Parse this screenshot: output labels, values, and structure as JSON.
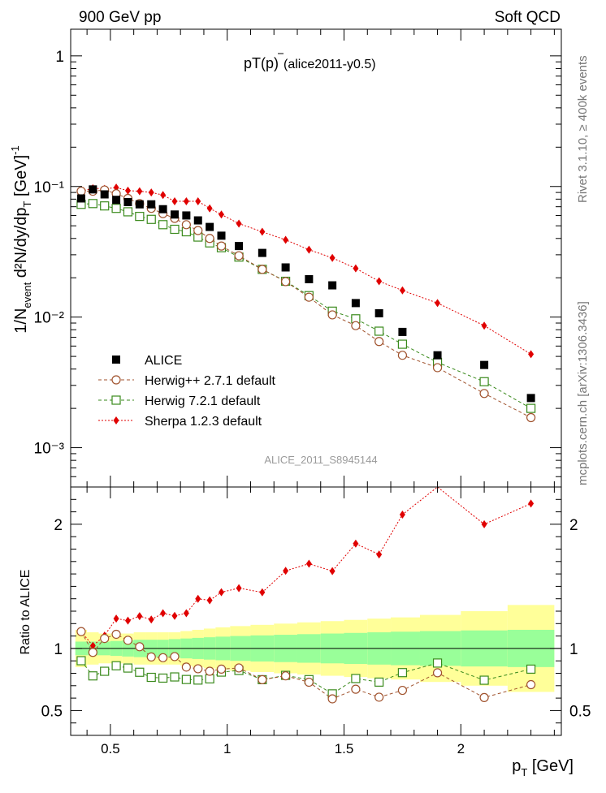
{
  "header": {
    "left": "900 GeV pp",
    "right": "Soft QCD"
  },
  "side": {
    "rivet": "Rivet 3.1.10, ≥ 400k events",
    "mcplots": "mcplots.cern.ch [arXiv:1306.3436]"
  },
  "plot": {
    "title_prefix": "pT",
    "title_particle": "(p)",
    "title_suffix": "(alice2011-y0.5)",
    "analysis_label": "ALICE_2011_S8945144",
    "ylabel_main": "1/N",
    "ylabel_sub": "event",
    "ylabel_rest": " d²N/dy/dp",
    "ylabel_subT": "T",
    "ylabel_unit": " [GeV]",
    "ylabel_exp": "-1",
    "ratio_ylabel": "Ratio to ALICE",
    "xlabel_main": "p",
    "xlabel_sub": "T",
    "xlabel_unit": " [GeV]"
  },
  "colors": {
    "data": "#000000",
    "herwigpp": "#a0522d",
    "herwig7": "#3a8a1c",
    "sherpa": "#e00000",
    "band_outer": "#ffff99",
    "band_inner": "#99ff99"
  },
  "chart_data": {
    "type": "scatter",
    "title": "pT(p̄) (alice2011-y0.5)",
    "xlabel": "pT [GeV]",
    "ylabel": "1/Nevent d2N/dy/dpT [GeV]^-1",
    "xlim": [
      0.33,
      2.43
    ],
    "ylim": [
      0.0005,
      1.6
    ],
    "ylog": true,
    "ratio_ylim": [
      0.3,
      2.3
    ],
    "x": [
      0.375,
      0.425,
      0.475,
      0.525,
      0.575,
      0.625,
      0.675,
      0.725,
      0.775,
      0.825,
      0.875,
      0.925,
      0.975,
      1.05,
      1.15,
      1.25,
      1.35,
      1.45,
      1.55,
      1.65,
      1.75,
      1.9,
      2.1,
      2.3
    ],
    "x_tick_labels": [
      "0.5",
      "1",
      "1.5",
      "2"
    ],
    "y_tick_labels": [
      "10⁻³",
      "10⁻²",
      "10⁻¹",
      "1"
    ],
    "ratio_tick_labels": [
      "0.5",
      "1",
      "2"
    ],
    "band_inner": [
      0.055,
      0.055,
      0.055,
      0.06,
      0.065,
      0.07,
      0.07,
      0.07,
      0.075,
      0.08,
      0.085,
      0.09,
      0.095,
      0.1,
      0.105,
      0.11,
      0.115,
      0.12,
      0.125,
      0.13,
      0.135,
      0.14,
      0.145,
      0.15
    ],
    "band_outer": [
      0.15,
      0.13,
      0.12,
      0.12,
      0.12,
      0.13,
      0.13,
      0.13,
      0.13,
      0.14,
      0.15,
      0.16,
      0.17,
      0.18,
      0.19,
      0.2,
      0.21,
      0.22,
      0.23,
      0.24,
      0.25,
      0.27,
      0.3,
      0.35
    ],
    "series": [
      {
        "name": "ALICE",
        "key": "data",
        "marker": "square",
        "values": [
          0.081,
          0.095,
          0.087,
          0.079,
          0.076,
          0.073,
          0.073,
          0.067,
          0.061,
          0.06,
          0.055,
          0.049,
          0.042,
          0.035,
          0.031,
          0.024,
          0.0195,
          0.0175,
          0.0128,
          0.0107,
          0.0077,
          0.0051,
          0.0043,
          0.0024
        ]
      },
      {
        "name": "Herwig++ 2.7.1 default",
        "key": "herwigpp",
        "marker": "circle",
        "values": [
          0.092,
          0.092,
          0.094,
          0.088,
          0.081,
          0.074,
          0.068,
          0.062,
          0.057,
          0.051,
          0.046,
          0.04,
          0.035,
          0.0295,
          0.0232,
          0.0187,
          0.0142,
          0.0104,
          0.0086,
          0.0065,
          0.0051,
          0.0041,
          0.0026,
          0.0017
        ]
      },
      {
        "name": "Herwig 7.2.1 default",
        "key": "herwig7",
        "marker": "opensquare",
        "values": [
          0.073,
          0.074,
          0.071,
          0.068,
          0.064,
          0.059,
          0.056,
          0.051,
          0.047,
          0.045,
          0.041,
          0.037,
          0.034,
          0.0288,
          0.0232,
          0.0188,
          0.0146,
          0.0111,
          0.0097,
          0.0078,
          0.0062,
          0.0045,
          0.0032,
          0.002
        ]
      },
      {
        "name": "Sherpa 1.2.3 default",
        "key": "sherpa",
        "marker": "diamond",
        "values": [
          0.092,
          0.097,
          0.096,
          0.098,
          0.093,
          0.092,
          0.09,
          0.086,
          0.077,
          0.077,
          0.077,
          0.068,
          0.061,
          0.052,
          0.045,
          0.039,
          0.0328,
          0.0284,
          0.0236,
          0.0188,
          0.016,
          0.0128,
          0.0086,
          0.0052
        ]
      }
    ]
  }
}
